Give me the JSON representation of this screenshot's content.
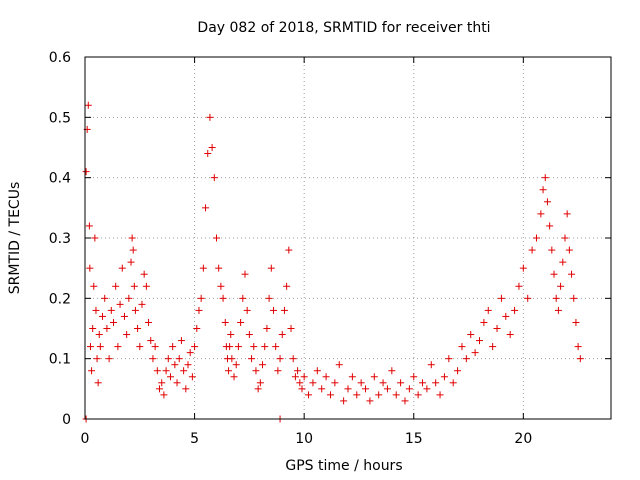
{
  "chart_data": {
    "type": "scatter",
    "title": "Day 082 of 2018, SRMTID for receiver thti",
    "xlabel": "GPS time / hours",
    "ylabel": "SRMTID / TECUs",
    "xlim": [
      0,
      24
    ],
    "ylim": [
      0,
      0.6
    ],
    "xticks": [
      0,
      5,
      10,
      15,
      20
    ],
    "yticks": [
      0,
      0.1,
      0.2,
      0.3,
      0.4,
      0.5,
      0.6
    ],
    "xtick_labels": [
      "0",
      "5",
      "10",
      "15",
      "20"
    ],
    "ytick_labels": [
      "0",
      "0.1",
      "0.2",
      "0.3",
      "0.4",
      "0.5",
      "0.6"
    ],
    "grid": true,
    "marker": "+",
    "series_color": "#e00000",
    "series": [
      {
        "name": "SRMTID",
        "x": [
          0.05,
          0.1,
          0.15,
          0.2,
          0.22,
          0.25,
          0.3,
          0.35,
          0.4,
          0.45,
          0.5,
          0.55,
          0.6,
          0.65,
          0.7,
          0.8,
          0.9,
          1.0,
          1.1,
          1.2,
          1.3,
          1.4,
          1.5,
          1.6,
          1.7,
          1.8,
          1.9,
          2.0,
          2.1,
          2.15,
          2.2,
          2.25,
          2.3,
          2.4,
          2.5,
          2.6,
          2.7,
          2.8,
          2.9,
          3.0,
          3.1,
          3.2,
          3.3,
          3.4,
          3.5,
          3.6,
          3.7,
          3.8,
          3.9,
          4.0,
          4.1,
          4.2,
          4.3,
          4.4,
          4.5,
          4.6,
          4.7,
          4.8,
          4.9,
          5.0,
          5.1,
          5.2,
          5.3,
          5.4,
          5.5,
          5.6,
          5.7,
          5.8,
          5.9,
          6.0,
          6.1,
          6.2,
          6.3,
          6.4,
          6.45,
          6.5,
          6.55,
          6.6,
          6.65,
          6.7,
          6.8,
          6.9,
          7.0,
          7.1,
          7.2,
          7.3,
          7.4,
          7.5,
          7.6,
          7.7,
          7.8,
          7.9,
          8.0,
          8.1,
          8.2,
          8.3,
          8.4,
          8.5,
          8.6,
          8.7,
          8.8,
          8.9,
          9.0,
          9.1,
          9.2,
          9.3,
          9.4,
          9.5,
          9.6,
          9.7,
          9.8,
          9.9,
          10.0,
          10.2,
          10.4,
          10.6,
          10.8,
          11.0,
          11.2,
          11.4,
          11.6,
          11.8,
          12.0,
          12.2,
          12.4,
          12.6,
          12.8,
          13.0,
          13.2,
          13.4,
          13.6,
          13.8,
          14.0,
          14.2,
          14.4,
          14.6,
          14.8,
          15.0,
          15.2,
          15.4,
          15.6,
          15.8,
          16.0,
          16.2,
          16.4,
          16.6,
          16.8,
          17.0,
          17.2,
          17.4,
          17.6,
          17.8,
          18.0,
          18.2,
          18.4,
          18.6,
          18.8,
          19.0,
          19.2,
          19.4,
          19.6,
          19.8,
          20.0,
          20.2,
          20.4,
          20.6,
          20.8,
          20.9,
          21.0,
          21.1,
          21.2,
          21.3,
          21.4,
          21.5,
          21.6,
          21.7,
          21.8,
          21.9,
          22.0,
          22.1,
          22.2,
          22.3,
          22.4,
          22.5,
          22.6,
          0.05,
          8.9
        ],
        "y": [
          0.41,
          0.48,
          0.52,
          0.32,
          0.25,
          0.12,
          0.08,
          0.15,
          0.22,
          0.3,
          0.18,
          0.1,
          0.06,
          0.14,
          0.12,
          0.17,
          0.2,
          0.15,
          0.1,
          0.18,
          0.16,
          0.22,
          0.12,
          0.19,
          0.25,
          0.17,
          0.14,
          0.2,
          0.26,
          0.3,
          0.28,
          0.22,
          0.18,
          0.15,
          0.12,
          0.19,
          0.24,
          0.22,
          0.16,
          0.13,
          0.1,
          0.12,
          0.08,
          0.05,
          0.06,
          0.04,
          0.08,
          0.1,
          0.07,
          0.12,
          0.09,
          0.06,
          0.1,
          0.13,
          0.08,
          0.05,
          0.09,
          0.11,
          0.07,
          0.12,
          0.15,
          0.18,
          0.2,
          0.25,
          0.35,
          0.44,
          0.5,
          0.45,
          0.4,
          0.3,
          0.25,
          0.22,
          0.2,
          0.16,
          0.12,
          0.1,
          0.08,
          0.12,
          0.14,
          0.1,
          0.07,
          0.09,
          0.12,
          0.16,
          0.2,
          0.24,
          0.18,
          0.14,
          0.1,
          0.12,
          0.08,
          0.05,
          0.06,
          0.09,
          0.12,
          0.15,
          0.2,
          0.25,
          0.18,
          0.12,
          0.08,
          0.1,
          0.14,
          0.18,
          0.22,
          0.28,
          0.15,
          0.1,
          0.07,
          0.08,
          0.06,
          0.05,
          0.07,
          0.04,
          0.06,
          0.08,
          0.05,
          0.07,
          0.04,
          0.06,
          0.09,
          0.03,
          0.05,
          0.07,
          0.04,
          0.06,
          0.05,
          0.03,
          0.07,
          0.04,
          0.06,
          0.05,
          0.08,
          0.04,
          0.06,
          0.03,
          0.05,
          0.07,
          0.04,
          0.06,
          0.05,
          0.09,
          0.06,
          0.04,
          0.07,
          0.1,
          0.06,
          0.08,
          0.12,
          0.1,
          0.14,
          0.11,
          0.13,
          0.16,
          0.18,
          0.12,
          0.15,
          0.2,
          0.17,
          0.14,
          0.18,
          0.22,
          0.25,
          0.2,
          0.28,
          0.3,
          0.34,
          0.38,
          0.4,
          0.36,
          0.32,
          0.28,
          0.24,
          0.2,
          0.18,
          0.22,
          0.26,
          0.3,
          0.34,
          0.28,
          0.24,
          0.2,
          0.16,
          0.12,
          0.1,
          0.0,
          0.0
        ]
      }
    ]
  }
}
